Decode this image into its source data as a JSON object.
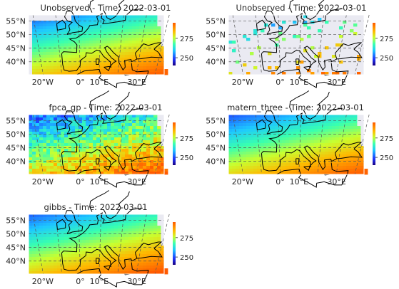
{
  "figure": {
    "panels": [
      {
        "title": "Unobserved - Time: 2022-03-01",
        "mode": "full"
      },
      {
        "title": "Unobserved - Time: 2022-03-01",
        "mode": "sparse"
      },
      {
        "title": "fpca_gp - Time: 2022-03-01",
        "mode": "noisy"
      },
      {
        "title": "matern_three - Time: 2022-03-01",
        "mode": "smooth"
      },
      {
        "title": "gibbs - Time: 2022-03-01",
        "mode": "smooth2"
      }
    ]
  },
  "chart_data": {
    "type": "heatmap",
    "variable_date": "2022-03-01",
    "lat_ticks": [
      "55°N",
      "50°N",
      "45°N",
      "40°N"
    ],
    "lon_ticks": [
      "20°W",
      "0°",
      "10°E",
      "30°E"
    ],
    "lat_values": [
      55,
      50,
      45,
      40
    ],
    "lon_values": [
      -20,
      0,
      10,
      30
    ],
    "colorbar": {
      "ticks": [
        275,
        250
      ],
      "min": 240,
      "max": 295,
      "colormap": "jet-like"
    },
    "grid": true,
    "background_color": "#eaeaf2",
    "line_color": "#000000"
  }
}
